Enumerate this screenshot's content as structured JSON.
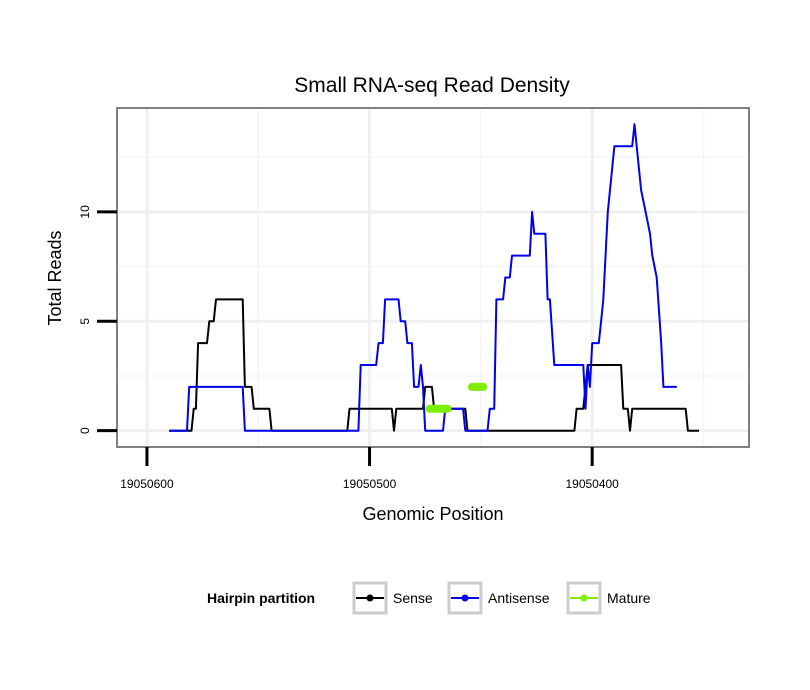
{
  "chart_data": {
    "type": "line",
    "title": "Small RNA-seq Read Density",
    "xlabel": "Genomic Position",
    "ylabel": "Total Reads",
    "xlim": [
      19050613,
      19050330
    ],
    "ylim": [
      -0.7,
      14.7
    ],
    "x_reversed": true,
    "xticks": [
      19050600,
      19050500,
      19050400
    ],
    "x_tick_labels": [
      "19050600",
      "19050500",
      "19050400"
    ],
    "yticks": [
      0,
      5,
      10
    ],
    "y_tick_labels": [
      "0",
      "5",
      "10"
    ],
    "grid": true,
    "legend": {
      "title": "Hairpin partition",
      "placement": "bottom",
      "entries": [
        "Sense",
        "Antisense",
        "Mature"
      ]
    },
    "series": [
      {
        "name": "Sense",
        "color": "#000000",
        "points": [
          [
            19050590,
            0
          ],
          [
            19050580,
            0
          ],
          [
            19050579,
            1
          ],
          [
            19050578,
            1
          ],
          [
            19050577,
            4
          ],
          [
            19050573,
            4
          ],
          [
            19050572,
            5
          ],
          [
            19050570,
            5
          ],
          [
            19050569,
            6
          ],
          [
            19050557,
            6
          ],
          [
            19050556,
            2
          ],
          [
            19050553,
            2
          ],
          [
            19050552,
            1
          ],
          [
            19050545,
            1
          ],
          [
            19050544,
            0
          ],
          [
            19050510,
            0
          ],
          [
            19050509,
            1
          ],
          [
            19050490,
            1
          ],
          [
            19050489,
            0
          ],
          [
            19050488,
            1
          ],
          [
            19050476,
            1
          ],
          [
            19050475,
            2
          ],
          [
            19050472,
            2
          ],
          [
            19050471,
            1
          ],
          [
            19050457,
            1
          ],
          [
            19050456,
            0
          ],
          [
            19050408,
            0
          ],
          [
            19050407,
            1
          ],
          [
            19050404,
            1
          ],
          [
            19050403,
            2
          ],
          [
            19050402,
            3
          ],
          [
            19050387,
            3
          ],
          [
            19050386,
            1
          ],
          [
            19050384,
            1
          ],
          [
            19050383,
            0
          ],
          [
            19050382,
            1
          ],
          [
            19050358,
            1
          ],
          [
            19050357,
            0
          ],
          [
            19050352,
            0
          ]
        ]
      },
      {
        "name": "Antisense",
        "color": "#0000ee",
        "points": [
          [
            19050590,
            0
          ],
          [
            19050582,
            0
          ],
          [
            19050581,
            2
          ],
          [
            19050557,
            2
          ],
          [
            19050556,
            0
          ],
          [
            19050505,
            0
          ],
          [
            19050504,
            3
          ],
          [
            19050497,
            3
          ],
          [
            19050496,
            4
          ],
          [
            19050494,
            4
          ],
          [
            19050493,
            6
          ],
          [
            19050487,
            6
          ],
          [
            19050486,
            5
          ],
          [
            19050484,
            5
          ],
          [
            19050483,
            4
          ],
          [
            19050481,
            4
          ],
          [
            19050480,
            2
          ],
          [
            19050478,
            2
          ],
          [
            19050477,
            3
          ],
          [
            19050476,
            2
          ],
          [
            19050475,
            0
          ],
          [
            19050467,
            0
          ],
          [
            19050466,
            1
          ],
          [
            19050458,
            1
          ],
          [
            19050457,
            0
          ],
          [
            19050447,
            0
          ],
          [
            19050446,
            1
          ],
          [
            19050444,
            1
          ],
          [
            19050443,
            6
          ],
          [
            19050440,
            6
          ],
          [
            19050439,
            7
          ],
          [
            19050437,
            7
          ],
          [
            19050436,
            8
          ],
          [
            19050428,
            8
          ],
          [
            19050427,
            10
          ],
          [
            19050426,
            9
          ],
          [
            19050421,
            9
          ],
          [
            19050420,
            6
          ],
          [
            19050419,
            6
          ],
          [
            19050417,
            3
          ],
          [
            19050404,
            3
          ],
          [
            19050403,
            1
          ],
          [
            19050402,
            3
          ],
          [
            19050401,
            2
          ],
          [
            19050400,
            4
          ],
          [
            19050397,
            4
          ],
          [
            19050396,
            5
          ],
          [
            19050395,
            6
          ],
          [
            19050393,
            10
          ],
          [
            19050391,
            12
          ],
          [
            19050390,
            13
          ],
          [
            19050382,
            13
          ],
          [
            19050381,
            14
          ],
          [
            19050379,
            12
          ],
          [
            19050378,
            11
          ],
          [
            19050376,
            10
          ],
          [
            19050374,
            9
          ],
          [
            19050373,
            8
          ],
          [
            19050371,
            7
          ],
          [
            19050369,
            4
          ],
          [
            19050368,
            2
          ],
          [
            19050362,
            2
          ]
        ]
      },
      {
        "name": "Mature",
        "color": "#7fee00",
        "points": [
          [
            19050473,
            1
          ],
          [
            19050465,
            1
          ],
          [
            19050464,
            null
          ],
          [
            19050454,
            2
          ],
          [
            19050449,
            2
          ]
        ]
      }
    ]
  }
}
